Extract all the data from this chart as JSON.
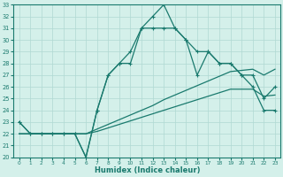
{
  "xlabel": "Humidex (Indice chaleur)",
  "x": [
    0,
    1,
    2,
    3,
    4,
    5,
    6,
    7,
    8,
    9,
    10,
    11,
    12,
    13,
    14,
    15,
    16,
    17,
    18,
    19,
    20,
    21,
    22,
    23
  ],
  "line_main": [
    23,
    22,
    22,
    22,
    22,
    22,
    20,
    24,
    27,
    28,
    28,
    31,
    31,
    31,
    31,
    30,
    27,
    29,
    28,
    28,
    27,
    26,
    24,
    24
  ],
  "line_spike": [
    23,
    22,
    22,
    22,
    22,
    22,
    20,
    24,
    27,
    28,
    29,
    31,
    32,
    33,
    31,
    30,
    29,
    29,
    28,
    28,
    27,
    27,
    25,
    26
  ],
  "line_upper": [
    22,
    22,
    22,
    22,
    22,
    22,
    22,
    22.4,
    22.8,
    23.2,
    23.6,
    24,
    24.4,
    24.9,
    25.3,
    25.7,
    26.1,
    26.5,
    26.9,
    27.3,
    27.4,
    27.5,
    27.0,
    27.5
  ],
  "line_lower": [
    22,
    22,
    22,
    22,
    22,
    22,
    22,
    22.2,
    22.5,
    22.8,
    23.1,
    23.4,
    23.7,
    24.0,
    24.3,
    24.6,
    24.9,
    25.2,
    25.5,
    25.8,
    25.8,
    25.8,
    25.2,
    25.3
  ],
  "color": "#1a7a6e",
  "bg_color": "#d4f0ea",
  "grid_color": "#b0d8d2",
  "ylim": [
    20,
    33
  ],
  "yticks": [
    20,
    21,
    22,
    23,
    24,
    25,
    26,
    27,
    28,
    29,
    30,
    31,
    32,
    33
  ],
  "xticks": [
    0,
    1,
    2,
    3,
    4,
    5,
    6,
    7,
    8,
    9,
    10,
    11,
    12,
    13,
    14,
    15,
    16,
    17,
    18,
    19,
    20,
    21,
    22,
    23
  ],
  "marker": "+"
}
